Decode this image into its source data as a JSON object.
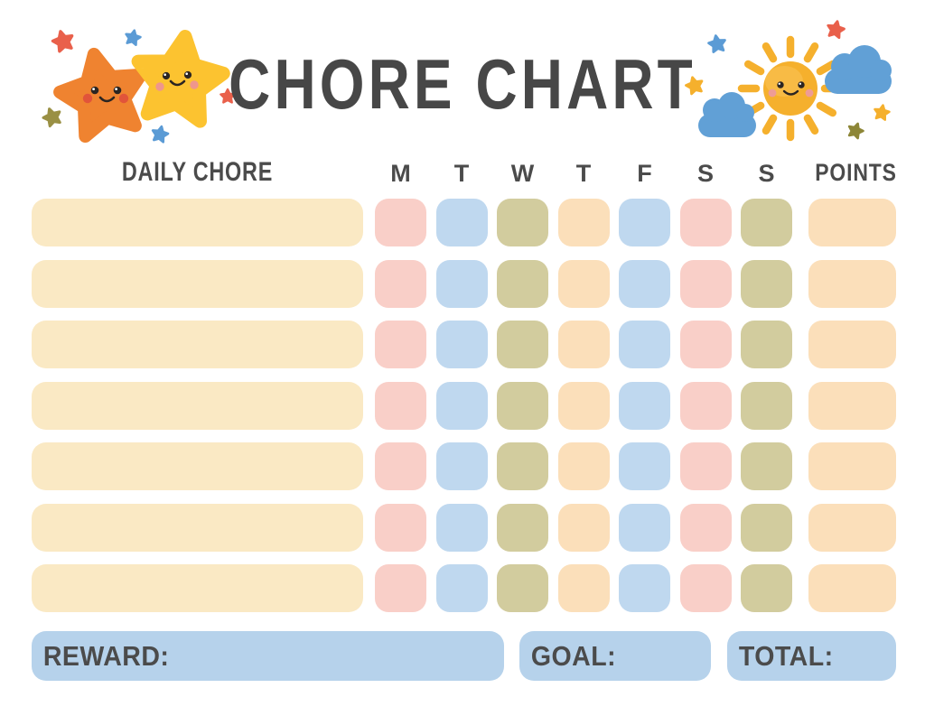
{
  "title": {
    "text": "CHORE CHART"
  },
  "theme": {
    "background": "#ffffff",
    "title_color": "#474747",
    "text_color": "#4b4b4b"
  },
  "header": {
    "daily_chore_label": "DAILY CHORE",
    "points_label": "POINTS"
  },
  "grid": {
    "row_count": 7,
    "chore_cell_color": "#fae9c4",
    "points_cell_color": "#fbdfba",
    "day_columns": [
      {
        "label": "M",
        "color": "#f9cfc8"
      },
      {
        "label": "T",
        "color": "#bfd8ef"
      },
      {
        "label": "W",
        "color": "#d2cc9e"
      },
      {
        "label": "T",
        "color": "#fbdfba"
      },
      {
        "label": "F",
        "color": "#bfd8ef"
      },
      {
        "label": "S",
        "color": "#f9cfc8"
      },
      {
        "label": "S",
        "color": "#d2cc9e"
      }
    ]
  },
  "footer": {
    "reward_label": "REWARD:",
    "goal_label": "GOAL:",
    "total_label": "TOTAL:",
    "box_color": "#b6d2eb"
  },
  "decorations": {
    "eye_color": "#2b2522",
    "glint_color": "#ffffff",
    "left": {
      "stars": [
        {
          "name": "small-red-star",
          "color": "#e9604b"
        },
        {
          "name": "small-blue-star-top",
          "color": "#5b9bd5"
        },
        {
          "name": "big-orange-star",
          "color": "#ef8330",
          "cheek_color": "#e1543a"
        },
        {
          "name": "big-yellow-star",
          "color": "#fcc330",
          "cheek_color": "#ef968c"
        },
        {
          "name": "small-olive-star",
          "color": "#9a9044"
        },
        {
          "name": "small-blue-star-bottom",
          "color": "#5b9bd5"
        },
        {
          "name": "small-red-star-right",
          "color": "#e9604b"
        }
      ]
    },
    "right": {
      "sun_color": "#f5b02d",
      "sun_highlight_color": "#f9c153",
      "sun_cheek_color": "#ee9c95",
      "cloud_color": "#61a0d6",
      "stars": [
        {
          "name": "small-blue-star",
          "color": "#5b9bd5"
        },
        {
          "name": "small-red-star",
          "color": "#e9604b"
        },
        {
          "name": "small-yellow-star",
          "color": "#f5b02d"
        },
        {
          "name": "small-yellow-star-2",
          "color": "#f5b02d"
        },
        {
          "name": "small-olive-star",
          "color": "#8d8637"
        }
      ]
    }
  }
}
